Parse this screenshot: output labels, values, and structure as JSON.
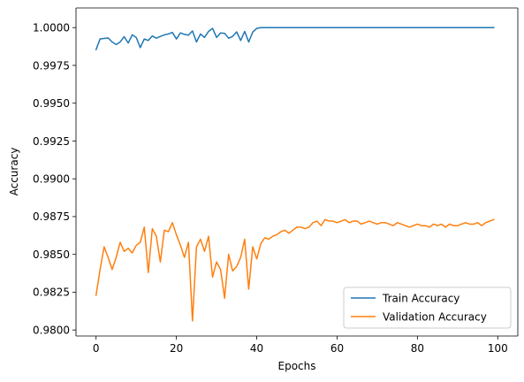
{
  "chart_data": {
    "type": "line",
    "title": "",
    "xlabel": "Epochs",
    "ylabel": "Accuracy",
    "xlim": [
      -5,
      105
    ],
    "ylim": [
      0.9796,
      1.0013
    ],
    "xticks": [
      0,
      20,
      40,
      60,
      80,
      100
    ],
    "xtick_labels": [
      "0",
      "20",
      "40",
      "60",
      "80",
      "100"
    ],
    "yticks": [
      0.98,
      0.9825,
      0.985,
      0.9875,
      0.99,
      0.9925,
      0.995,
      0.9975,
      1.0
    ],
    "ytick_labels": [
      "0.9800",
      "0.9825",
      "0.9850",
      "0.9875",
      "0.9900",
      "0.9925",
      "0.9950",
      "0.9975",
      "1.0000"
    ],
    "grid": false,
    "legend_position": "lower right",
    "series": [
      {
        "name": "Train Accuracy",
        "color": "#1f77b4",
        "x": [
          0,
          1,
          2,
          3,
          4,
          5,
          6,
          7,
          8,
          9,
          10,
          11,
          12,
          13,
          14,
          15,
          16,
          17,
          18,
          19,
          20,
          21,
          22,
          23,
          24,
          25,
          26,
          27,
          28,
          29,
          30,
          31,
          32,
          33,
          34,
          35,
          36,
          37,
          38,
          39,
          40,
          41,
          42,
          43,
          44,
          45,
          46,
          47,
          48,
          49,
          50,
          51,
          52,
          53,
          54,
          55,
          56,
          57,
          58,
          59,
          60,
          61,
          62,
          63,
          64,
          65,
          66,
          67,
          68,
          69,
          70,
          71,
          72,
          73,
          74,
          75,
          76,
          77,
          78,
          79,
          80,
          81,
          82,
          83,
          84,
          85,
          86,
          87,
          88,
          89,
          90,
          91,
          92,
          93,
          94,
          95,
          96,
          97,
          98,
          99
        ],
        "values": [
          0.99855,
          0.99925,
          0.99928,
          0.99932,
          0.99905,
          0.99888,
          0.99905,
          0.9994,
          0.99898,
          0.99952,
          0.99935,
          0.99868,
          0.99925,
          0.99915,
          0.99945,
          0.9993,
          0.99942,
          0.99952,
          0.99958,
          0.99968,
          0.99925,
          0.99965,
          0.99955,
          0.9995,
          0.99978,
          0.99905,
          0.99958,
          0.99935,
          0.99975,
          0.99995,
          0.99935,
          0.99965,
          0.99962,
          0.9993,
          0.99942,
          0.99972,
          0.99915,
          0.99975,
          0.99905,
          0.9997,
          0.99995,
          1.0,
          1.0,
          1.0,
          1.0,
          1.0,
          1.0,
          1.0,
          1.0,
          1.0,
          1.0,
          1.0,
          1.0,
          1.0,
          1.0,
          1.0,
          1.0,
          1.0,
          1.0,
          1.0,
          1.0,
          1.0,
          1.0,
          1.0,
          1.0,
          1.0,
          1.0,
          1.0,
          1.0,
          1.0,
          1.0,
          1.0,
          1.0,
          1.0,
          1.0,
          1.0,
          1.0,
          1.0,
          1.0,
          1.0,
          1.0,
          1.0,
          1.0,
          1.0,
          1.0,
          1.0,
          1.0,
          1.0,
          1.0,
          1.0,
          1.0,
          1.0,
          1.0,
          1.0,
          1.0,
          1.0,
          1.0,
          1.0,
          1.0,
          1.0
        ]
      },
      {
        "name": "Validation Accuracy",
        "color": "#ff7f0e",
        "x": [
          0,
          1,
          2,
          3,
          4,
          5,
          6,
          7,
          8,
          9,
          10,
          11,
          12,
          13,
          14,
          15,
          16,
          17,
          18,
          19,
          20,
          21,
          22,
          23,
          24,
          25,
          26,
          27,
          28,
          29,
          30,
          31,
          32,
          33,
          34,
          35,
          36,
          37,
          38,
          39,
          40,
          41,
          42,
          43,
          44,
          45,
          46,
          47,
          48,
          49,
          50,
          51,
          52,
          53,
          54,
          55,
          56,
          57,
          58,
          59,
          60,
          61,
          62,
          63,
          64,
          65,
          66,
          67,
          68,
          69,
          70,
          71,
          72,
          73,
          74,
          75,
          76,
          77,
          78,
          79,
          80,
          81,
          82,
          83,
          84,
          85,
          86,
          87,
          88,
          89,
          90,
          91,
          92,
          93,
          94,
          95,
          96,
          97,
          98,
          99
        ],
        "values": [
          0.9823,
          0.984,
          0.9855,
          0.9848,
          0.984,
          0.9848,
          0.9858,
          0.9852,
          0.9854,
          0.9851,
          0.9856,
          0.9858,
          0.9868,
          0.9838,
          0.9867,
          0.9862,
          0.9845,
          0.9866,
          0.9865,
          0.9871,
          0.9863,
          0.9856,
          0.9848,
          0.9858,
          0.9806,
          0.9855,
          0.986,
          0.9852,
          0.9862,
          0.9835,
          0.9845,
          0.984,
          0.9821,
          0.985,
          0.9839,
          0.9842,
          0.9848,
          0.986,
          0.9827,
          0.9855,
          0.9847,
          0.9857,
          0.9861,
          0.986,
          0.9862,
          0.9863,
          0.9865,
          0.9866,
          0.9864,
          0.9866,
          0.9868,
          0.9868,
          0.9867,
          0.9868,
          0.9871,
          0.9872,
          0.9869,
          0.9873,
          0.9872,
          0.9872,
          0.9871,
          0.9872,
          0.9873,
          0.9871,
          0.9872,
          0.9872,
          0.987,
          0.9871,
          0.9872,
          0.9871,
          0.987,
          0.9871,
          0.9871,
          0.987,
          0.9869,
          0.9871,
          0.987,
          0.9869,
          0.9868,
          0.9869,
          0.987,
          0.9869,
          0.9869,
          0.9868,
          0.987,
          0.9869,
          0.987,
          0.9868,
          0.987,
          0.9869,
          0.9869,
          0.987,
          0.9871,
          0.987,
          0.987,
          0.9871,
          0.9869,
          0.9871,
          0.9872,
          0.9873
        ]
      }
    ]
  }
}
